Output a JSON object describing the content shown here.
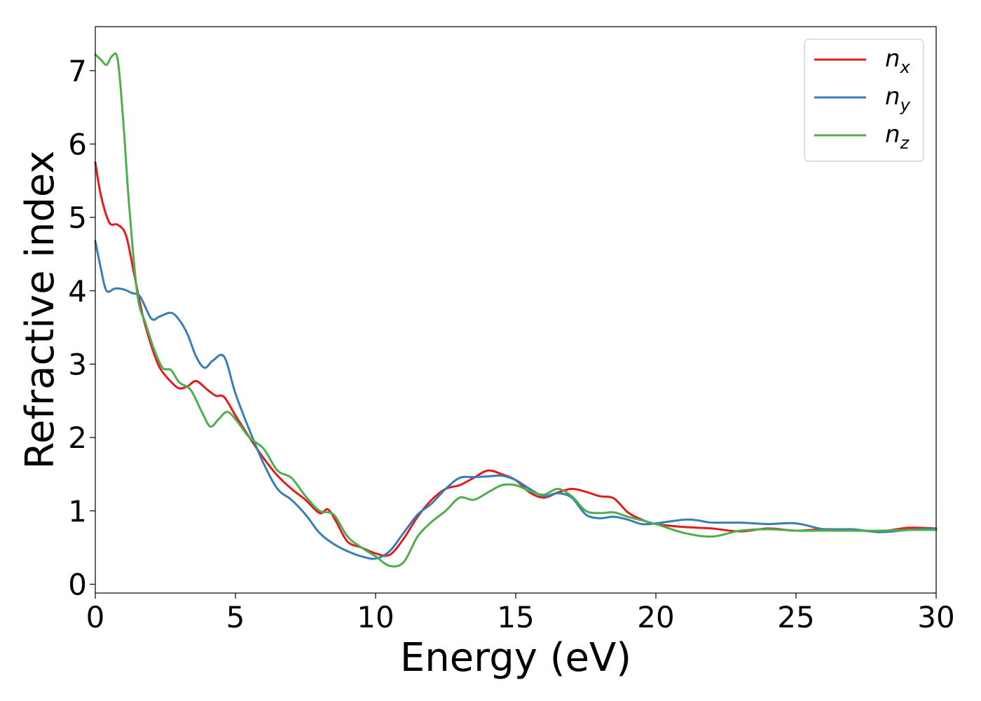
{
  "chart_data": {
    "type": "line",
    "xlabel": "Energy (eV)",
    "ylabel": "Refractive index",
    "xlim": [
      0,
      30
    ],
    "ylim": [
      -0.12,
      7.6
    ],
    "xticks": [
      0,
      5,
      10,
      15,
      20,
      25,
      30
    ],
    "yticks": [
      0,
      1,
      2,
      3,
      4,
      5,
      6,
      7
    ],
    "grid": false,
    "legend_position": "top-right",
    "series": [
      {
        "name": "n",
        "subscript": "x",
        "color": "#e41a1c",
        "x": [
          0,
          0.2,
          0.5,
          0.8,
          1.1,
          1.4,
          1.7,
          2.0,
          2.3,
          2.7,
          3.0,
          3.3,
          3.6,
          4.0,
          4.3,
          4.6,
          5.0,
          5.5,
          6.0,
          6.5,
          7.0,
          7.5,
          8.0,
          8.3,
          8.6,
          9.0,
          9.5,
          10.0,
          10.5,
          11.0,
          11.5,
          12.0,
          12.5,
          13.0,
          13.5,
          14.0,
          14.5,
          15.0,
          15.5,
          16.0,
          16.5,
          17.0,
          17.5,
          18.0,
          18.5,
          19.0,
          19.5,
          20.0,
          21.0,
          22.0,
          23.0,
          24.0,
          25.0,
          26.0,
          27.0,
          28.0,
          29.0,
          30.0
        ],
        "y": [
          5.75,
          5.3,
          4.93,
          4.9,
          4.75,
          4.2,
          3.65,
          3.25,
          2.95,
          2.76,
          2.67,
          2.7,
          2.77,
          2.65,
          2.57,
          2.55,
          2.3,
          2.0,
          1.72,
          1.48,
          1.3,
          1.15,
          0.97,
          1.02,
          0.85,
          0.58,
          0.5,
          0.42,
          0.4,
          0.62,
          0.92,
          1.15,
          1.3,
          1.35,
          1.45,
          1.55,
          1.5,
          1.42,
          1.25,
          1.18,
          1.25,
          1.3,
          1.26,
          1.2,
          1.17,
          0.98,
          0.88,
          0.82,
          0.78,
          0.76,
          0.72,
          0.76,
          0.73,
          0.75,
          0.74,
          0.72,
          0.77,
          0.76
        ]
      },
      {
        "name": "n",
        "subscript": "y",
        "color": "#377eb8",
        "x": [
          0,
          0.2,
          0.4,
          0.7,
          1.0,
          1.3,
          1.6,
          2.0,
          2.3,
          2.7,
          3.0,
          3.3,
          3.6,
          3.9,
          4.2,
          4.6,
          5.0,
          5.5,
          6.0,
          6.5,
          7.0,
          7.5,
          8.0,
          8.5,
          9.0,
          9.5,
          10.0,
          10.5,
          11.0,
          11.5,
          12.0,
          12.5,
          13.0,
          13.5,
          14.0,
          14.5,
          15.0,
          15.5,
          16.0,
          16.5,
          17.0,
          17.5,
          18.0,
          18.5,
          19.0,
          19.5,
          20.0,
          21.0,
          21.5,
          22.0,
          23.0,
          24.0,
          25.0,
          26.0,
          27.0,
          28.0,
          29.0,
          30.0
        ],
        "y": [
          4.68,
          4.3,
          4.0,
          4.03,
          4.02,
          3.97,
          3.92,
          3.62,
          3.65,
          3.7,
          3.6,
          3.4,
          3.1,
          2.95,
          3.05,
          3.1,
          2.6,
          2.1,
          1.65,
          1.3,
          1.15,
          0.95,
          0.7,
          0.55,
          0.45,
          0.38,
          0.35,
          0.45,
          0.7,
          0.95,
          1.1,
          1.3,
          1.45,
          1.46,
          1.47,
          1.48,
          1.42,
          1.3,
          1.2,
          1.24,
          1.18,
          0.95,
          0.9,
          0.92,
          0.88,
          0.82,
          0.83,
          0.88,
          0.87,
          0.84,
          0.84,
          0.82,
          0.83,
          0.75,
          0.75,
          0.71,
          0.74,
          0.76
        ]
      },
      {
        "name": "n",
        "subscript": "z",
        "color": "#4daf4a",
        "x": [
          0,
          0.2,
          0.4,
          0.6,
          0.8,
          1.0,
          1.2,
          1.5,
          1.8,
          2.1,
          2.4,
          2.7,
          3.0,
          3.4,
          3.8,
          4.1,
          4.4,
          4.7,
          5.0,
          5.5,
          6.0,
          6.5,
          7.0,
          7.5,
          8.0,
          8.5,
          9.0,
          9.5,
          10.0,
          10.5,
          11.0,
          11.5,
          12.0,
          12.5,
          13.0,
          13.5,
          14.0,
          14.5,
          15.0,
          15.5,
          16.0,
          16.5,
          17.0,
          17.5,
          18.0,
          18.5,
          19.0,
          20.0,
          21.0,
          22.0,
          23.0,
          24.0,
          25.0,
          26.0,
          27.0,
          28.0,
          29.0,
          30.0
        ],
        "y": [
          7.22,
          7.15,
          7.08,
          7.2,
          7.15,
          6.3,
          5.2,
          3.95,
          3.55,
          3.2,
          2.95,
          2.92,
          2.75,
          2.65,
          2.35,
          2.15,
          2.25,
          2.35,
          2.25,
          2.0,
          1.85,
          1.55,
          1.45,
          1.2,
          1.0,
          0.95,
          0.65,
          0.5,
          0.38,
          0.25,
          0.3,
          0.65,
          0.85,
          1.0,
          1.18,
          1.15,
          1.25,
          1.35,
          1.35,
          1.27,
          1.22,
          1.3,
          1.2,
          1.0,
          0.97,
          0.98,
          0.92,
          0.82,
          0.7,
          0.65,
          0.73,
          0.75,
          0.73,
          0.73,
          0.73,
          0.73,
          0.74,
          0.74
        ]
      }
    ]
  }
}
